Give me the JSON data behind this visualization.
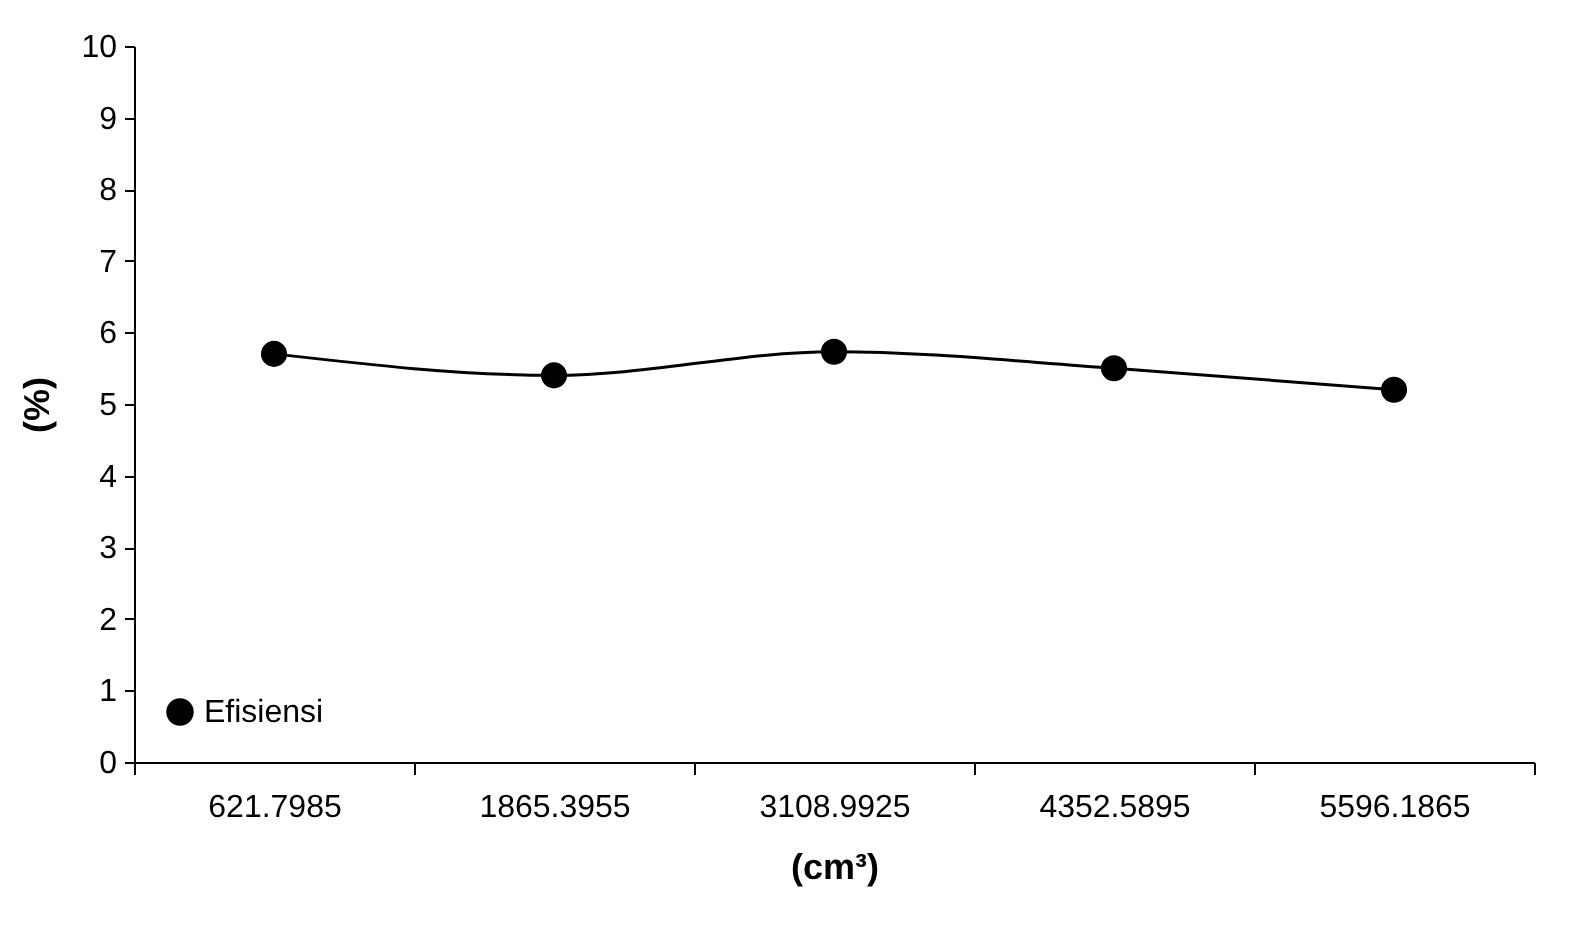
{
  "chart_data": {
    "type": "line",
    "xlabel": "(cm³)",
    "ylabel": "(%)",
    "categories": [
      "621.7985",
      "1865.3955",
      "3108.9925",
      "4352.5895",
      "5596.1865"
    ],
    "series": [
      {
        "name": "Efisiensi",
        "color": "#000000",
        "values": [
          5.7,
          5.4,
          5.73,
          5.5,
          5.2
        ]
      }
    ],
    "ylim": [
      0,
      10
    ],
    "yticks": [
      0,
      1,
      2,
      3,
      4,
      5,
      6,
      7,
      8,
      9,
      10
    ],
    "grid": false,
    "legend": "bottom left",
    "marker": "circle",
    "line_style": "solid"
  }
}
